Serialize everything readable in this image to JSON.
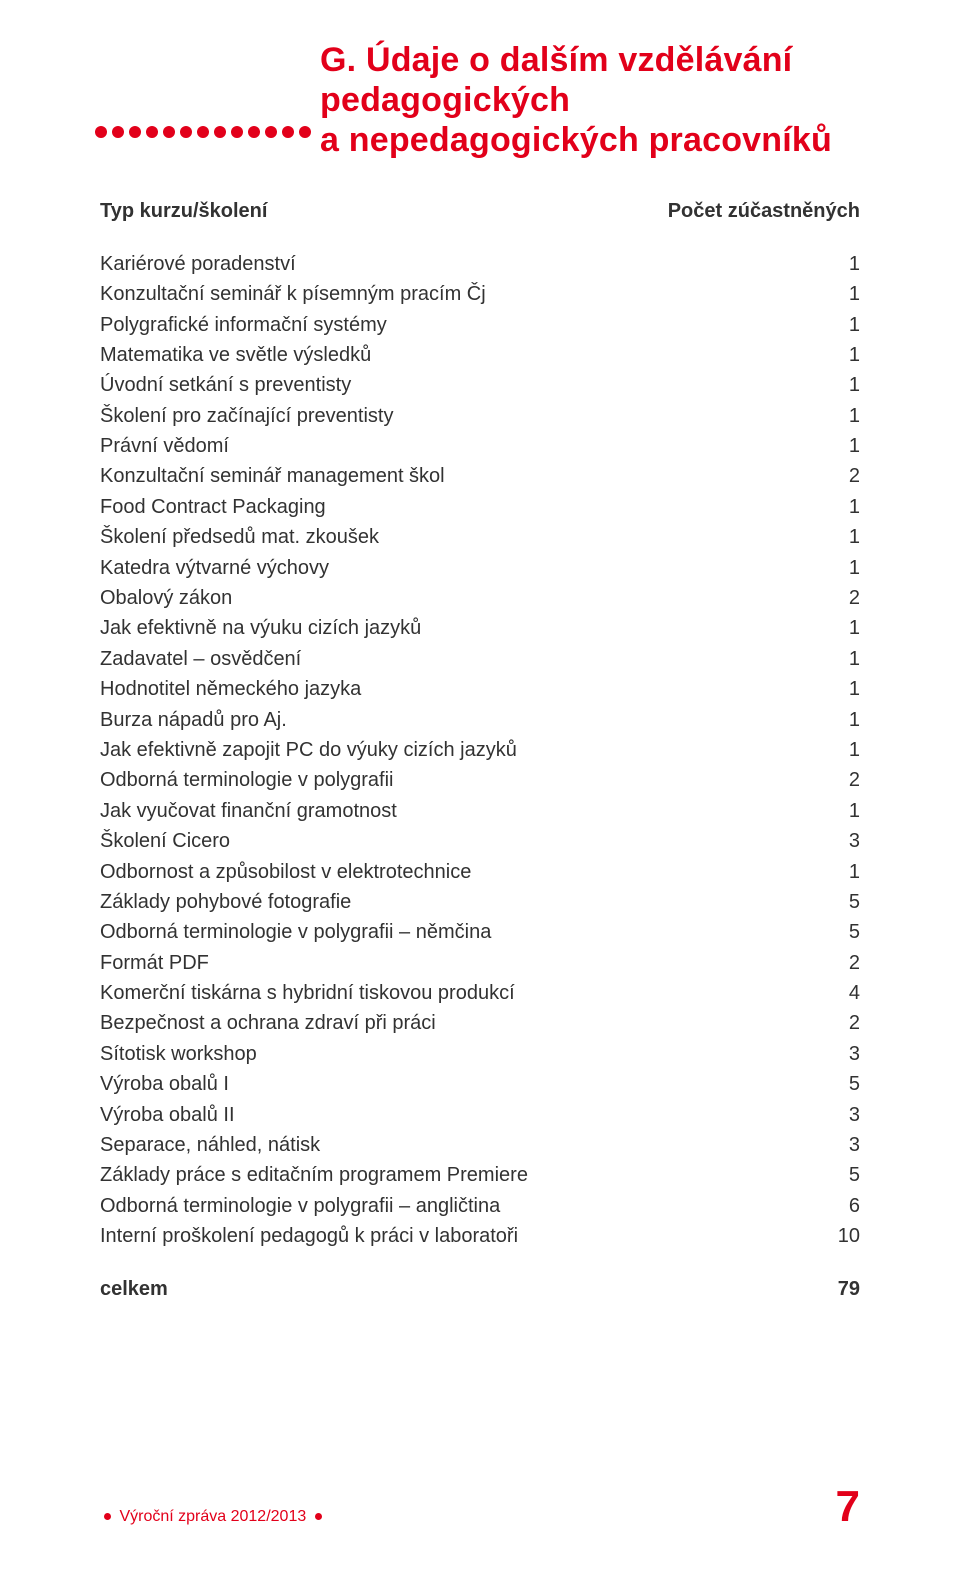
{
  "heading": {
    "title": "G.  Údaje o dalším vzdělávání\npedagogických\na nepedagogických pracovníků",
    "color": "#e2001a",
    "dot_count": 13
  },
  "table": {
    "header_left": "Typ kurzu/školení",
    "header_right": "Počet zúčastněných",
    "rows": [
      {
        "label": "Kariérové poradenství",
        "value": "1"
      },
      {
        "label": "Konzultační seminář k písemným pracím Čj",
        "value": "1"
      },
      {
        "label": "Polygrafické informační systémy",
        "value": "1"
      },
      {
        "label": "Matematika ve světle výsledků",
        "value": "1"
      },
      {
        "label": "Úvodní setkání s preventisty",
        "value": "1"
      },
      {
        "label": "Školení pro začínající preventisty",
        "value": "1"
      },
      {
        "label": "Právní vědomí",
        "value": "1"
      },
      {
        "label": "Konzultační seminář management škol",
        "value": "2"
      },
      {
        "label": "Food Contract Packaging",
        "value": "1"
      },
      {
        "label": "Školení předsedů mat. zkoušek",
        "value": "1"
      },
      {
        "label": "Katedra výtvarné výchovy",
        "value": "1"
      },
      {
        "label": "Obalový zákon",
        "value": "2"
      },
      {
        "label": "Jak efektivně na výuku cizích jazyků",
        "value": "1"
      },
      {
        "label": "Zadavatel – osvědčení",
        "value": "1"
      },
      {
        "label": "Hodnotitel německého jazyka",
        "value": "1"
      },
      {
        "label": "Burza nápadů pro Aj.",
        "value": "1"
      },
      {
        "label": "Jak efektivně zapojit PC do výuky cizích jazyků",
        "value": "1"
      },
      {
        "label": "Odborná terminologie v polygrafii",
        "value": "2"
      },
      {
        "label": "Jak vyučovat finanční gramotnost",
        "value": "1"
      },
      {
        "label": "Školení Cicero",
        "value": "3"
      },
      {
        "label": "Odbornost a způsobilost v elektrotechnice",
        "value": "1"
      },
      {
        "label": "Základy pohybové fotografie",
        "value": "5"
      },
      {
        "label": "Odborná terminologie v polygrafii – němčina",
        "value": "5"
      },
      {
        "label": "Formát PDF",
        "value": "2"
      },
      {
        "label": "Komerční tiskárna s hybridní tiskovou produkcí",
        "value": "4"
      },
      {
        "label": "Bezpečnost a ochrana zdraví při práci",
        "value": "2"
      },
      {
        "label": "Sítotisk workshop",
        "value": "3"
      },
      {
        "label": "Výroba obalů I",
        "value": "5"
      },
      {
        "label": "Výroba obalů II",
        "value": "3"
      },
      {
        "label": "Separace, náhled, nátisk",
        "value": "3"
      },
      {
        "label": "Základy práce s editačním programem Premiere",
        "value": "5"
      },
      {
        "label": "Odborná terminologie v polygrafii – angličtina",
        "value": "6"
      },
      {
        "label": "Interní proškolení pedagogů k práci v laboratoři",
        "value": "10"
      }
    ],
    "total_label": "celkem",
    "total_value": "79"
  },
  "footer": {
    "text": "Výroční zpráva 2012/2013",
    "page_number": "7"
  },
  "colors": {
    "accent": "#e2001a",
    "text": "#323232",
    "background": "#ffffff"
  }
}
